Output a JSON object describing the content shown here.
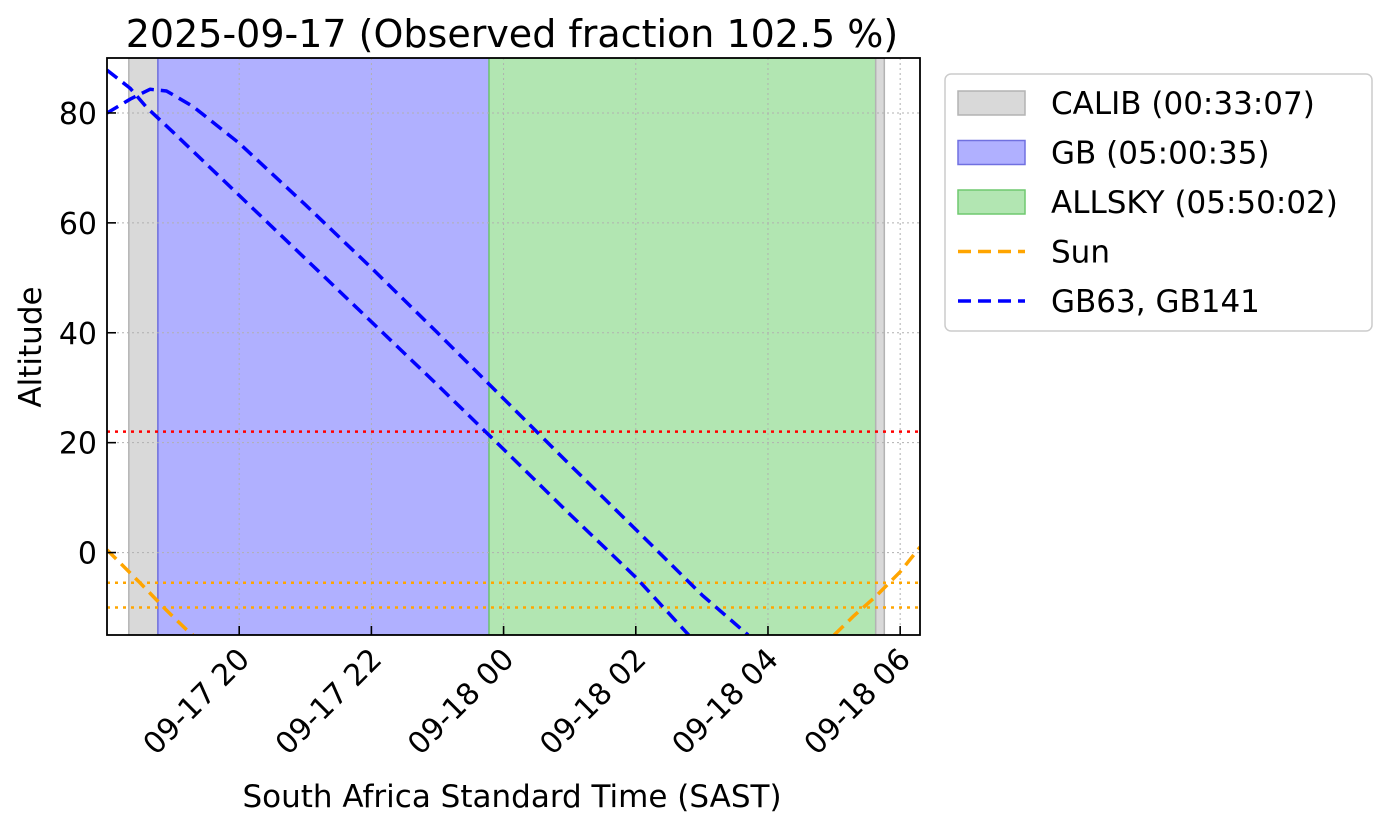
{
  "chart_data": {
    "type": "line",
    "title": "2025-09-17 (Observed fraction 102.5 %)",
    "xlabel": "South Africa Standard Time (SAST)",
    "ylabel": "Altitude",
    "x_unit": "hours since 2025-09-17 00:00 SAST",
    "xlim": [
      18.0,
      30.3
    ],
    "ylim": [
      -15,
      90
    ],
    "grid": true,
    "legend_position": "outside-top-right",
    "xticks": [
      {
        "x": 20,
        "label": "09-17 20"
      },
      {
        "x": 22,
        "label": "09-17 22"
      },
      {
        "x": 24,
        "label": "09-18 00"
      },
      {
        "x": 26,
        "label": "09-18 02"
      },
      {
        "x": 28,
        "label": "09-18 04"
      },
      {
        "x": 30,
        "label": "09-18 06"
      }
    ],
    "yticks": [
      {
        "y": 0,
        "label": "0"
      },
      {
        "y": 20,
        "label": "20"
      },
      {
        "y": 40,
        "label": "40"
      },
      {
        "y": 60,
        "label": "60"
      },
      {
        "y": 80,
        "label": "80"
      }
    ],
    "spans": [
      {
        "label": "CALIB (00:33:07)",
        "x0": 18.33,
        "x1": 18.77,
        "color": "#d9d9d9",
        "edge": "#b3b3b3"
      },
      {
        "label": "GB (05:00:35)",
        "x0": 18.77,
        "x1": 23.78,
        "color": "#b0b0ff",
        "edge": "#7070e0"
      },
      {
        "label": "ALLSKY (05:50:02)",
        "x0": 23.78,
        "x1": 29.63,
        "color": "#b2e6b2",
        "edge": "#6fc96f"
      },
      {
        "label": "CALIB (00:33:07)",
        "x0": 29.63,
        "x1": 29.76,
        "color": "#d9d9d9",
        "edge": "#b3b3b3"
      }
    ],
    "hlines": [
      {
        "y": 22,
        "color": "#ff0000"
      },
      {
        "y": -5.5,
        "color": "#ffa500"
      },
      {
        "y": -10,
        "color": "#ffa500"
      }
    ],
    "series": [
      {
        "name": "Sun",
        "color": "#ffa500",
        "style": "dashed",
        "segments": [
          [
            [
              18.0,
              0.5
            ],
            [
              18.5,
              -5.5
            ],
            [
              18.9,
              -10.5
            ],
            [
              19.2,
              -14.0
            ],
            [
              19.3,
              -15.0
            ]
          ],
          [
            [
              29.0,
              -15.0
            ],
            [
              29.3,
              -11.5
            ],
            [
              29.63,
              -8.0
            ],
            [
              30.0,
              -3.5
            ],
            [
              30.3,
              1.0
            ]
          ]
        ]
      },
      {
        "name": "GB63, GB141",
        "color": "#0000ff",
        "style": "dashed",
        "segments": [
          [
            [
              18.0,
              87.8
            ],
            [
              18.35,
              84.5
            ],
            [
              18.6,
              81.0
            ],
            [
              19.0,
              76.5
            ],
            [
              20.0,
              65.0
            ],
            [
              21.0,
              53.5
            ],
            [
              22.0,
              42.0
            ],
            [
              23.0,
              30.5
            ],
            [
              24.0,
              18.8
            ],
            [
              25.0,
              7.0
            ],
            [
              26.0,
              -4.5
            ],
            [
              26.8,
              -15.0
            ]
          ],
          [
            [
              18.0,
              80.0
            ],
            [
              18.35,
              82.5
            ],
            [
              18.65,
              84.3
            ],
            [
              18.9,
              84.0
            ],
            [
              19.3,
              81.2
            ],
            [
              20.0,
              74.5
            ],
            [
              21.0,
              63.3
            ],
            [
              22.0,
              51.8
            ],
            [
              23.0,
              40.0
            ],
            [
              24.0,
              28.0
            ],
            [
              25.0,
              16.0
            ],
            [
              26.0,
              4.2
            ],
            [
              27.0,
              -7.7
            ],
            [
              27.7,
              -15.0
            ]
          ]
        ]
      }
    ],
    "legend": [
      {
        "label": "CALIB (00:33:07)",
        "kind": "patch",
        "color": "#d9d9d9",
        "edge": "#b3b3b3"
      },
      {
        "label": "GB (05:00:35)",
        "kind": "patch",
        "color": "#b0b0ff",
        "edge": "#7070e0"
      },
      {
        "label": "ALLSKY (05:50:02)",
        "kind": "patch",
        "color": "#b2e6b2",
        "edge": "#6fc96f"
      },
      {
        "label": "Sun",
        "kind": "line",
        "color": "#ffa500"
      },
      {
        "label": "GB63, GB141",
        "kind": "line",
        "color": "#0000ff"
      }
    ]
  }
}
